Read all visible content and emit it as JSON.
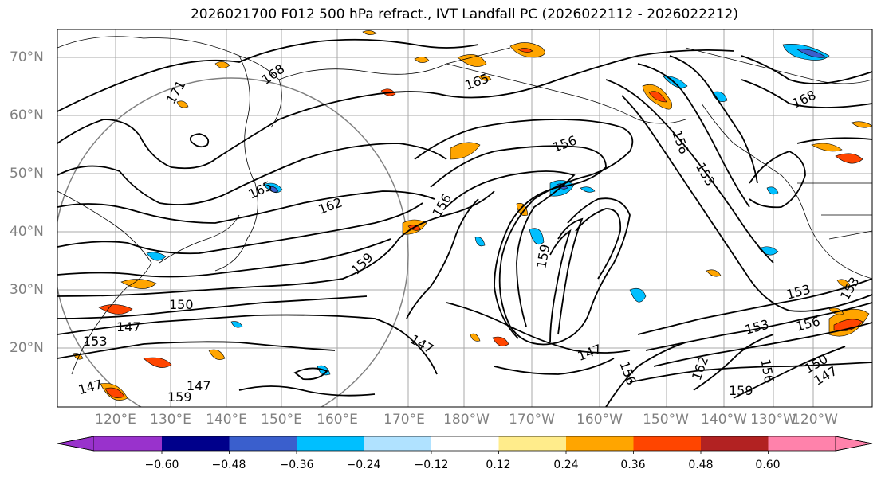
{
  "title": "2026021700 F012 500 hPa refract., IVT Landfall PC (2026022112 - 2026022212)",
  "lat_labels": [
    "70°N",
    "60°N",
    "50°N",
    "40°N",
    "30°N",
    "20°N"
  ],
  "lon_labels": [
    "120°E",
    "130°E",
    "140°E",
    "150°E",
    "160°E",
    "170°E",
    "180°W",
    "170°W",
    "160°W",
    "150°W",
    "140°W",
    "130°W",
    "120°W"
  ],
  "contour_labels": [
    "171",
    "168",
    "165",
    "168",
    "165",
    "162",
    "156",
    "159",
    "150",
    "147",
    "153",
    "147",
    "159",
    "156",
    "153",
    "156",
    "147",
    "147",
    "159",
    "156",
    "162",
    "159",
    "156",
    "153",
    "153",
    "156",
    "150",
    "147",
    "147",
    "153"
  ],
  "colorbar": {
    "ticks": [
      "−0.60",
      "−0.48",
      "−0.36",
      "−0.24",
      "−0.12",
      "0.12",
      "0.24",
      "0.36",
      "0.48",
      "0.60"
    ],
    "colors": [
      "#9932cc",
      "#00008b",
      "#3a5fcd",
      "#00bfff",
      "#b0e2ff",
      "#ffffff",
      "#ffec8b",
      "#ffa500",
      "#ff4500",
      "#b22222",
      "#ff82ab"
    ]
  },
  "colors": {
    "contour": "#000000",
    "coastline": "#000000",
    "grid": "#a9a9a9",
    "axis_label": "#808080"
  }
}
